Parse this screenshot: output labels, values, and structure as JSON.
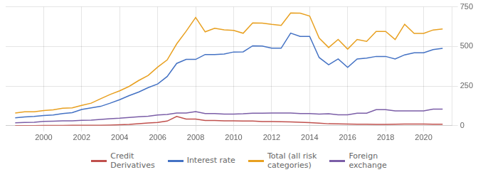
{
  "chart_data": {
    "type": "line",
    "x": [
      1998.5,
      1999.0,
      1999.5,
      2000.0,
      2000.5,
      2001.0,
      2001.5,
      2002.0,
      2002.5,
      2003.0,
      2003.5,
      2004.0,
      2004.5,
      2005.0,
      2005.5,
      2006.0,
      2006.5,
      2007.0,
      2007.5,
      2008.0,
      2008.5,
      2009.0,
      2009.5,
      2010.0,
      2010.5,
      2011.0,
      2011.5,
      2012.0,
      2012.5,
      2013.0,
      2013.5,
      2014.0,
      2014.5,
      2015.0,
      2015.5,
      2016.0,
      2016.5,
      2017.0,
      2017.5,
      2018.0,
      2018.5,
      2019.0,
      2019.5,
      2020.0,
      2020.5,
      2021.0
    ],
    "series": [
      {
        "name": "Credit\nDerivatives",
        "color": "#C0504D",
        "values": [
          0,
          0,
          0,
          1,
          1,
          1,
          2,
          2,
          2,
          3,
          4,
          6,
          8,
          13,
          17,
          20,
          29,
          58,
          42,
          42,
          33,
          33,
          30,
          30,
          29,
          29,
          26,
          26,
          25,
          24,
          21,
          19,
          16,
          12,
          11,
          10,
          9,
          9,
          8,
          8,
          9,
          10,
          10,
          10,
          9,
          9
        ]
      },
      {
        "name": "Interest rate",
        "color": "#4472C4",
        "values": [
          50,
          55,
          58,
          64,
          68,
          77,
          82,
          102,
          112,
          122,
          142,
          164,
          190,
          212,
          240,
          263,
          310,
          393,
          418,
          418,
          449,
          449,
          452,
          465,
          466,
          504,
          503,
          489,
          489,
          584,
          563,
          563,
          430,
          384,
          421,
          368,
          421,
          426,
          437,
          437,
          421,
          447,
          460,
          460,
          480,
          488
        ]
      },
      {
        "name": "Total (all risk\ncategories)",
        "color": "#E8A020",
        "values": [
          80,
          88,
          88,
          95,
          100,
          110,
          112,
          128,
          142,
          170,
          197,
          220,
          248,
          285,
          317,
          370,
          415,
          516,
          596,
          683,
          592,
          615,
          605,
          601,
          583,
          648,
          647,
          639,
          633,
          711,
          710,
          692,
          553,
          493,
          544,
          483,
          544,
          532,
          595,
          595,
          544,
          640,
          582,
          582,
          604,
          610
        ]
      },
      {
        "name": "Foreign\nexchange",
        "color": "#7B5EA7",
        "values": [
          18,
          20,
          22,
          27,
          28,
          30,
          31,
          34,
          35,
          40,
          44,
          47,
          52,
          56,
          60,
          68,
          71,
          80,
          80,
          89,
          76,
          76,
          73,
          73,
          75,
          79,
          79,
          80,
          80,
          80,
          76,
          76,
          73,
          75,
          69,
          69,
          79,
          79,
          101,
          101,
          93,
          93,
          93,
          93,
          104,
          104
        ]
      }
    ],
    "xlim": [
      1998.0,
      2021.5
    ],
    "xticks": [
      2000,
      2002,
      2004,
      2006,
      2008,
      2010,
      2012,
      2014,
      2016,
      2018,
      2020
    ],
    "ylim": [
      0,
      750
    ],
    "yticks": [
      0,
      250,
      500,
      750
    ],
    "grid": true,
    "legend": "bottom"
  }
}
